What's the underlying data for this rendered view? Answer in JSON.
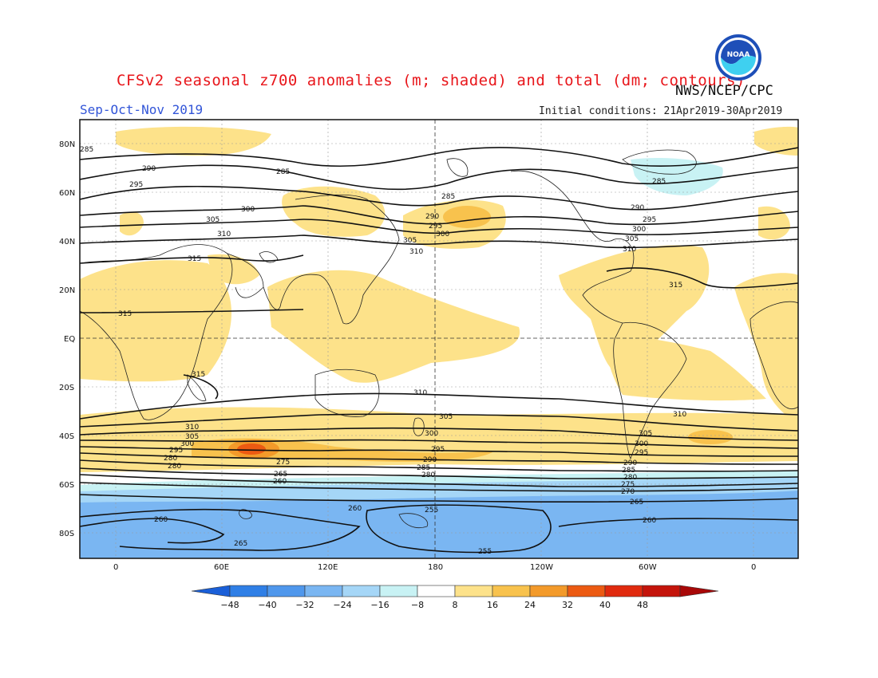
{
  "title": "CFSv2 seasonal z700 anomalies (m; shaded) and total (dm; contours)",
  "season": "Sep-Oct-Nov 2019",
  "agency": "NWS/NCEP/CPC",
  "initial_conditions": "Initial conditions: 21Apr2019-30Apr2019",
  "logo_text": "NOAA",
  "lat_labels": [
    "80N",
    "60N",
    "40N",
    "20N",
    "EQ",
    "20S",
    "40S",
    "60S",
    "80S"
  ],
  "lon_labels": [
    "0",
    "60E",
    "120E",
    "180",
    "120W",
    "60W",
    "0"
  ],
  "colorbar": {
    "labels": [
      "-48",
      "-40",
      "-32",
      "-24",
      "-16",
      "-8",
      "8",
      "16",
      "24",
      "32",
      "40",
      "48"
    ],
    "colors": [
      "#1a5fd8",
      "#2f7fe6",
      "#4f97ec",
      "#7ab6f2",
      "#a5d6f7",
      "#c8f2f4",
      "#ffffff",
      "#fde28a",
      "#f8c24d",
      "#f39a2a",
      "#ec5a12",
      "#e02a0e",
      "#c4140b",
      "#a80808"
    ]
  },
  "contour_labels": [
    "285",
    "290",
    "295",
    "300",
    "305",
    "310",
    "315",
    "310",
    "305",
    "300",
    "295",
    "290",
    "285",
    "280",
    "275",
    "270",
    "265",
    "260",
    "255"
  ],
  "colors": {
    "title": "#e8161b",
    "season": "#3255d8",
    "positive": "#fde28a",
    "negative": "#a5d6f7"
  }
}
